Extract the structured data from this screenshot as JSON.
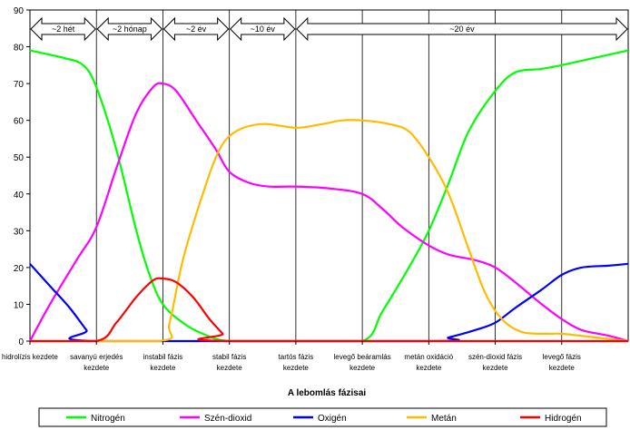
{
  "chart_data": {
    "type": "line",
    "title": "",
    "xlabel": "A lebomlás fázisai",
    "ylabel": "",
    "ylim": [
      0,
      90
    ],
    "yticks": [
      0,
      10,
      20,
      30,
      40,
      50,
      60,
      70,
      80,
      90
    ],
    "grid": "vertical lines at phase starts",
    "legend_placement": "bottom",
    "categories": [
      [
        "hidrolízis kezdete"
      ],
      [
        "savanyú erjedés",
        "kezdete"
      ],
      [
        "instabil fázis",
        "kezdete"
      ],
      [
        "stabil fázis",
        "kezdete"
      ],
      [
        "tartós fázis",
        "kezdete"
      ],
      [
        "levegő beáramlás",
        "kezdete"
      ],
      [
        "metán oxidáció",
        "kezdete"
      ],
      [
        "szén-dioxid fázis",
        "kezdete"
      ],
      [
        "levegő fázis",
        "kezdete"
      ]
    ],
    "durations": [
      {
        "label": "~2 hét",
        "from": 0,
        "to": 1
      },
      {
        "label": "~2 hónap",
        "from": 1,
        "to": 2
      },
      {
        "label": "~2 év",
        "from": 2,
        "to": 3
      },
      {
        "label": "~10 év",
        "from": 3,
        "to": 4
      },
      {
        "label": "~20 év",
        "from": 4,
        "to": 9
      }
    ],
    "series": [
      {
        "name": "Nitrogén",
        "color": "#00ff00",
        "points": [
          [
            0,
            79
          ],
          [
            0.5,
            77
          ],
          [
            0.8,
            75
          ],
          [
            1,
            69
          ],
          [
            1.3,
            52
          ],
          [
            1.6,
            30
          ],
          [
            1.8,
            18
          ],
          [
            2,
            10
          ],
          [
            2.3,
            5
          ],
          [
            2.6,
            2
          ],
          [
            3,
            0
          ],
          [
            4,
            0
          ],
          [
            5,
            0
          ],
          [
            5.3,
            8
          ],
          [
            5.7,
            20
          ],
          [
            6,
            30
          ],
          [
            6.3,
            43
          ],
          [
            6.6,
            57
          ],
          [
            7,
            68
          ],
          [
            7.3,
            73
          ],
          [
            7.7,
            74
          ],
          [
            8,
            75
          ],
          [
            8.5,
            77
          ],
          [
            9,
            79
          ]
        ]
      },
      {
        "name": "Szén-dioxid",
        "color": "#ff00ff",
        "points": [
          [
            0,
            0
          ],
          [
            0.3,
            10
          ],
          [
            0.7,
            22
          ],
          [
            1,
            31
          ],
          [
            1.3,
            47
          ],
          [
            1.6,
            62
          ],
          [
            1.85,
            69
          ],
          [
            2,
            70
          ],
          [
            2.2,
            68
          ],
          [
            2.5,
            60
          ],
          [
            2.8,
            52
          ],
          [
            3,
            46
          ],
          [
            3.3,
            43
          ],
          [
            3.6,
            42
          ],
          [
            4,
            42
          ],
          [
            4.5,
            41.5
          ],
          [
            5,
            40
          ],
          [
            5.3,
            36
          ],
          [
            5.6,
            31
          ],
          [
            6,
            26
          ],
          [
            6.3,
            23.5
          ],
          [
            6.7,
            22
          ],
          [
            7,
            20
          ],
          [
            7.3,
            16
          ],
          [
            7.7,
            10
          ],
          [
            8,
            6
          ],
          [
            8.3,
            3
          ],
          [
            8.7,
            1.5
          ],
          [
            9,
            0
          ]
        ]
      },
      {
        "name": "Oxigén",
        "color": "#0000ff",
        "points": [
          [
            0,
            21
          ],
          [
            0.3,
            15
          ],
          [
            0.6,
            9
          ],
          [
            0.85,
            3
          ],
          [
            1,
            0
          ],
          [
            6,
            0
          ],
          [
            6.3,
            1
          ],
          [
            6.7,
            3
          ],
          [
            7,
            5
          ],
          [
            7.3,
            9
          ],
          [
            7.7,
            14
          ],
          [
            8,
            18
          ],
          [
            8.3,
            20
          ],
          [
            8.7,
            20.5
          ],
          [
            9,
            21
          ]
        ]
      },
      {
        "name": "Metán",
        "color": "#ffbb00",
        "points": [
          [
            0,
            0
          ],
          [
            1.95,
            0
          ],
          [
            2.1,
            5
          ],
          [
            2.3,
            22
          ],
          [
            2.6,
            40
          ],
          [
            2.85,
            52
          ],
          [
            3.1,
            57
          ],
          [
            3.5,
            59
          ],
          [
            4,
            58
          ],
          [
            4.4,
            59
          ],
          [
            4.7,
            60
          ],
          [
            5,
            60
          ],
          [
            5.4,
            59
          ],
          [
            5.7,
            57
          ],
          [
            6,
            50
          ],
          [
            6.3,
            40
          ],
          [
            6.6,
            25
          ],
          [
            6.85,
            13
          ],
          [
            7.1,
            6
          ],
          [
            7.4,
            2.5
          ],
          [
            7.8,
            2
          ],
          [
            8,
            2
          ],
          [
            8.5,
            1
          ],
          [
            9,
            0
          ]
        ]
      },
      {
        "name": "Hidrogén",
        "color": "#ff0000",
        "points": [
          [
            0,
            0
          ],
          [
            1,
            0
          ],
          [
            1.3,
            5
          ],
          [
            1.6,
            12
          ],
          [
            1.85,
            16.5
          ],
          [
            2,
            17
          ],
          [
            2.2,
            16
          ],
          [
            2.45,
            12
          ],
          [
            2.7,
            6
          ],
          [
            2.9,
            2
          ],
          [
            3,
            0
          ],
          [
            9,
            0
          ]
        ]
      }
    ]
  }
}
